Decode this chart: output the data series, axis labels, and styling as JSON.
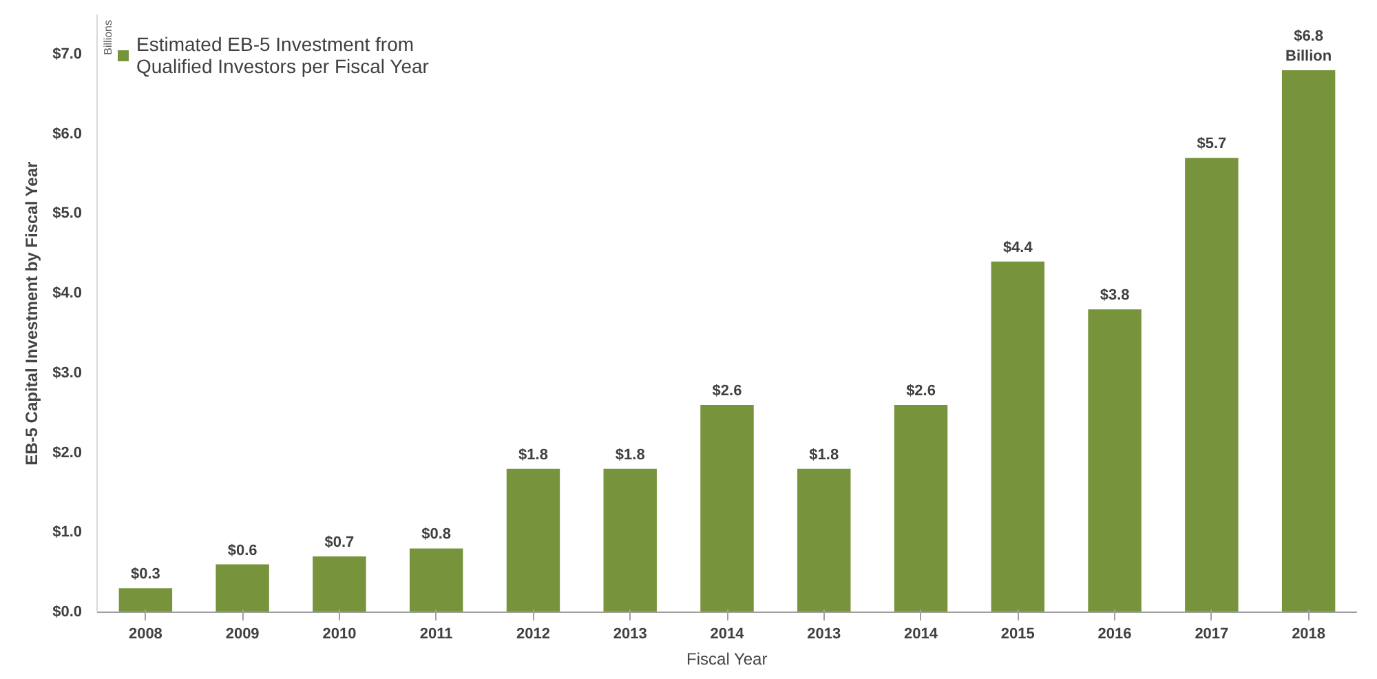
{
  "chart_data": {
    "type": "bar",
    "xlabel": "Fiscal Year",
    "ylabel": "EB-5 Capital Investment by Fiscal Year",
    "annotations": [
      "Billions"
    ],
    "categories": [
      "2008",
      "2009",
      "2010",
      "2011",
      "2012",
      "2013",
      "2014",
      "2013",
      "2014",
      "2015",
      "2016",
      "2017",
      "2018"
    ],
    "series": [
      {
        "name": "Estimated EB-5 Investment from Qualified Investors per Fiscal Year",
        "color": "#77933c",
        "values": [
          0.3,
          0.6,
          0.7,
          0.8,
          1.8,
          1.8,
          2.6,
          1.8,
          2.6,
          4.4,
          3.8,
          5.7,
          6.8
        ],
        "value_labels": [
          "$0.3",
          "$0.6",
          "$0.7",
          "$0.8",
          "$1.8",
          "$1.8",
          "$2.6",
          "$1.8",
          "$2.6",
          "$4.4",
          "$3.8",
          "$5.7",
          "$6.8 Billion"
        ]
      }
    ],
    "ylim": [
      0,
      7.5
    ],
    "yticks": [
      {
        "value": 0,
        "label": "$0.0"
      },
      {
        "value": 1,
        "label": "$1.0"
      },
      {
        "value": 2,
        "label": "$2.0"
      },
      {
        "value": 3,
        "label": "$3.0"
      },
      {
        "value": 4,
        "label": "$4.0"
      },
      {
        "value": 5,
        "label": "$5.0"
      },
      {
        "value": 6,
        "label": "$6.0"
      },
      {
        "value": 7,
        "label": "$7.0"
      }
    ],
    "grid": false,
    "legend": "top left"
  }
}
